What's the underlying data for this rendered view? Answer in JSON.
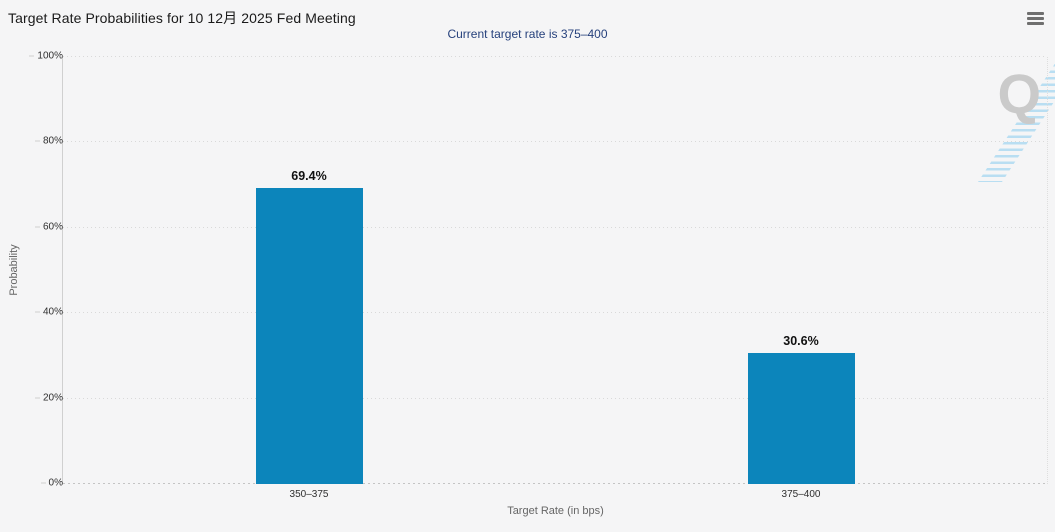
{
  "header": {
    "title": "Target Rate Probabilities for 10 12月 2025 Fed Meeting",
    "subtitle": "Current target rate is 375–400",
    "menu_icon": "hamburger-icon"
  },
  "chart_data": {
    "type": "bar",
    "title": "Target Rate Probabilities for 10 12月 2025 Fed Meeting",
    "subtitle": "Current target rate is 375–400",
    "categories": [
      "350–375",
      "375–400"
    ],
    "values": [
      69.4,
      30.6
    ],
    "value_labels": [
      "69.4%",
      "30.6%"
    ],
    "xlabel": "Target Rate (in bps)",
    "ylabel": "Probability",
    "ylim": [
      0,
      100
    ],
    "ytick_labels": [
      "0%",
      "20%",
      "40%",
      "60%",
      "80%",
      "100%"
    ],
    "grid": "horizontal dotted gridlines at every 20%",
    "legend": "none",
    "bar_color": "#0c85bb",
    "watermark_letter": "Q"
  },
  "colors": {
    "background": "#f5f5f6",
    "bar": "#0c85bb",
    "subtitle_text": "#26417c",
    "title_text": "#1a1a1a",
    "axis_title_text": "#666666",
    "tick_text": "#2f2f2f",
    "gridline": "#d9d9d9",
    "watermark_gray": "#cacaca",
    "watermark_blue": "#b2dcf1",
    "menu_icon": "#6f6f6f"
  }
}
